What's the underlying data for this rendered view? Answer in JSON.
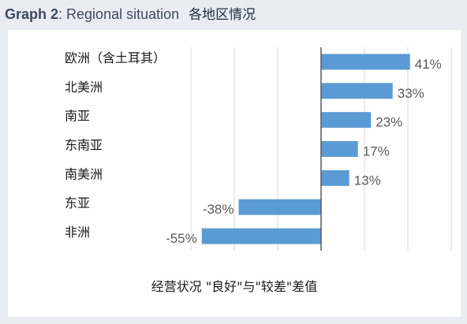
{
  "page": {
    "title_lead": "Graph 2",
    "title_rest": ": Regional situation",
    "subtitle": "各地区情况"
  },
  "chart_data": {
    "type": "bar",
    "orientation": "horizontal",
    "categories": [
      "欧洲（含土耳其）",
      "北美洲",
      "南亚",
      "东南亚",
      "南美洲",
      "东亚",
      "非洲"
    ],
    "values": [
      41,
      33,
      23,
      17,
      13,
      -38,
      -55
    ],
    "value_labels": [
      "41%",
      "33%",
      "23%",
      "17%",
      "13%",
      "-38%",
      "-55%"
    ],
    "xlim": [
      -60,
      60
    ],
    "grid": true,
    "bar_color": "#5b9bd5",
    "xlabel": "经营状况 \"良好\"与\"较差\"差值"
  }
}
